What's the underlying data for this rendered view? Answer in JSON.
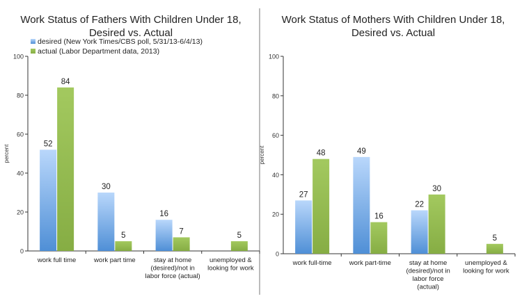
{
  "colors": {
    "desired_top": "#b9d7fb",
    "desired_bottom": "#4f8fd6",
    "actual_top": "#a3c95f",
    "actual_bottom": "#86ad44",
    "axis": "#333333",
    "divider": "#777777"
  },
  "chart_data": [
    {
      "type": "bar",
      "title_line1": "Work Status of Fathers With Children Under 18,",
      "title_line2": "Desired vs. Actual",
      "xlabel": "",
      "ylabel": "percent",
      "ylim": [
        0,
        100
      ],
      "yticks": [
        0,
        20,
        40,
        60,
        80,
        100
      ],
      "grid": false,
      "legend_position": "top-left",
      "categories": [
        [
          "work full time"
        ],
        [
          "work part time"
        ],
        [
          "stay at home",
          "(desired)/not in",
          "labor force (actual)"
        ],
        [
          "unemployed &",
          "looking for work"
        ]
      ],
      "series": [
        {
          "name": "desired (New York Times/CBS poll, 5/31/13-6/4/13)",
          "values": [
            52,
            30,
            16,
            null
          ]
        },
        {
          "name": "actual (Labor Department data, 2013)",
          "values": [
            84,
            5,
            7,
            5
          ]
        }
      ]
    },
    {
      "type": "bar",
      "title_line1": "Work Status of Mothers With Children Under 18,",
      "title_line2": "Desired vs. Actual",
      "xlabel": "",
      "ylabel": "percent",
      "ylim": [
        0,
        100
      ],
      "yticks": [
        0,
        20,
        40,
        60,
        80,
        100
      ],
      "grid": false,
      "categories": [
        [
          "work full-time"
        ],
        [
          "work part-time"
        ],
        [
          "stay at home",
          "(desired)/not in",
          "labor force",
          "(actual)"
        ],
        [
          "unemployed &",
          "looking for work"
        ]
      ],
      "series": [
        {
          "values": [
            27,
            49,
            22,
            null
          ]
        },
        {
          "values": [
            48,
            16,
            30,
            5
          ]
        }
      ]
    }
  ]
}
